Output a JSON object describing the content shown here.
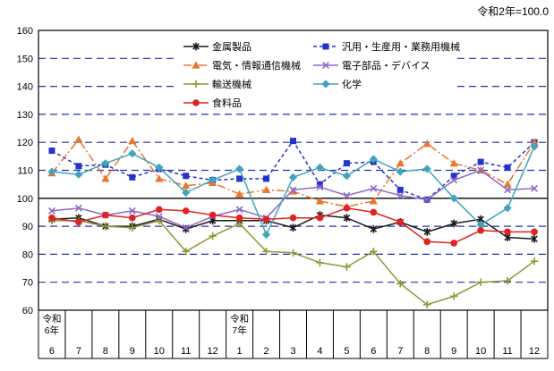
{
  "title": "令和2年=100.0",
  "chart_data": {
    "type": "line",
    "title": "令和2年=100.0",
    "ylim": [
      60,
      160
    ],
    "yticks": [
      60,
      70,
      80,
      90,
      100,
      110,
      120,
      130,
      140,
      150,
      160
    ],
    "grid": "horizontal-dashed, solid reference line at 100",
    "legend_position": "inside-top-center, 2 columns",
    "months": [
      "6",
      "7",
      "8",
      "9",
      "10",
      "11",
      "12",
      "1",
      "2",
      "3",
      "4",
      "5",
      "6",
      "7",
      "8",
      "9",
      "10",
      "11",
      "12"
    ],
    "era_labels": [
      {
        "index": 0,
        "lines": [
          "令和",
          "6年"
        ]
      },
      {
        "index": 7,
        "lines": [
          "令和",
          "7年"
        ]
      }
    ],
    "colors": {
      "grid_dashed": "#2233aa",
      "axis": "#000000",
      "reference_line_100": "#000000"
    },
    "series": [
      {
        "name": "金属製品",
        "color": "#1a1a1a",
        "marker": "star",
        "dash": "solid",
        "values": [
          92.5,
          93,
          90,
          90,
          92.5,
          89,
          92,
          92,
          92,
          89.5,
          94,
          93,
          89,
          91.5,
          88,
          91,
          92.5,
          86,
          85.5
        ]
      },
      {
        "name": "汎用・生産用・業務用機械",
        "color": "#2433cc",
        "marker": "square",
        "dash": "dashed",
        "values": [
          117,
          111.5,
          112,
          107.5,
          110.5,
          108,
          106.5,
          107,
          107,
          120.5,
          105,
          112.5,
          113,
          103,
          99.5,
          108,
          113,
          111,
          120
        ]
      },
      {
        "name": "電気・情報通信機械",
        "color": "#e8762c",
        "marker": "triangle",
        "dash": "dashdot",
        "values": [
          109,
          121,
          107,
          120.5,
          107,
          104.5,
          105.5,
          101.5,
          103,
          102.5,
          99,
          97,
          99,
          112.5,
          119.5,
          112.5,
          110,
          105,
          120
        ]
      },
      {
        "name": "電子部品・デバイス",
        "color": "#8f68c8",
        "marker": "x",
        "dash": "solid",
        "values": [
          95.5,
          96.5,
          94,
          95.5,
          93.5,
          89.5,
          93.5,
          96,
          93,
          103,
          104,
          101,
          103.5,
          101,
          99.5,
          106.5,
          110,
          103,
          103.5
        ]
      },
      {
        "name": "輸送機械",
        "color": "#8c9a33",
        "marker": "plus",
        "dash": "solid",
        "values": [
          92,
          92,
          90,
          89.5,
          92,
          81,
          86.5,
          91,
          81,
          80.5,
          77,
          75.5,
          81,
          69.5,
          62,
          65,
          70,
          70.5,
          77.5
        ]
      },
      {
        "name": "化学",
        "color": "#41a4bd",
        "marker": "diamond",
        "dash": "solid",
        "values": [
          109.5,
          108.5,
          112.5,
          116,
          111,
          102,
          106.5,
          110.5,
          87,
          107.5,
          111,
          108,
          114,
          109.5,
          110.5,
          100,
          90.5,
          96.5,
          118.5
        ]
      },
      {
        "name": "食料品",
        "color": "#e02222",
        "marker": "circle",
        "dash": "solid",
        "values": [
          93,
          91.5,
          94,
          93,
          96,
          95.5,
          94,
          93,
          92.5,
          93,
          93,
          96.5,
          95,
          91.5,
          84.5,
          84,
          88.5,
          88,
          88
        ]
      }
    ]
  }
}
